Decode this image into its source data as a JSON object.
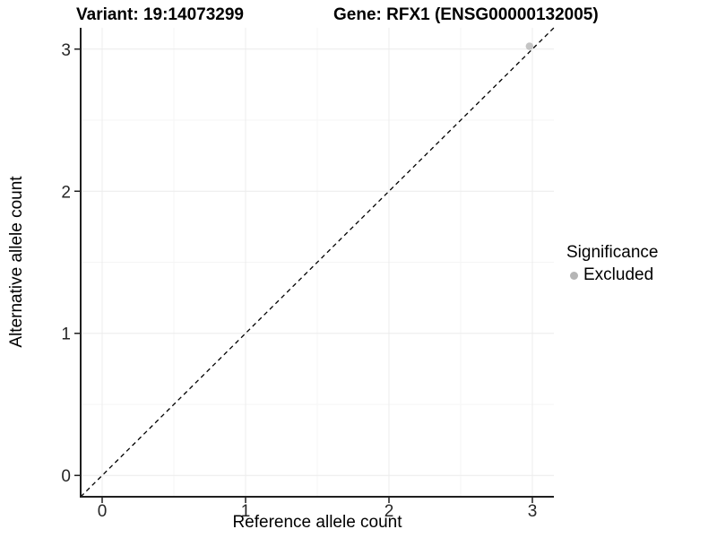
{
  "chart_data": {
    "type": "scatter",
    "title_left": "Variant: 19:14073299",
    "title_right": "Gene: RFX1 (ENSG00000132005)",
    "xlabel": "Reference allele count",
    "ylabel": "Alternative allele count",
    "xlim": [
      -0.15,
      3.15
    ],
    "ylim": [
      -0.15,
      3.15
    ],
    "x_ticks": [
      0,
      1,
      2,
      3
    ],
    "y_ticks": [
      0,
      1,
      2,
      3
    ],
    "grid": {
      "major": true,
      "minor": true,
      "major_color": "#ececec",
      "minor_color": "#f5f5f5"
    },
    "identity_line": {
      "style": "dashed",
      "color": "#000000",
      "from": [
        -0.15,
        -0.15
      ],
      "to": [
        3.15,
        3.15
      ]
    },
    "series": [
      {
        "name": "Excluded",
        "color": "#bebebe",
        "points": [
          {
            "x": 2.98,
            "y": 3.02
          }
        ]
      }
    ],
    "legend": {
      "title": "Significance",
      "position": "right",
      "entries": [
        {
          "label": "Excluded",
          "color": "#b5b5b5"
        }
      ]
    },
    "colors": {
      "axis_line": "#1f1f1f",
      "tick_text": "#262626",
      "title_text": "#000000",
      "background": "#ffffff"
    }
  }
}
